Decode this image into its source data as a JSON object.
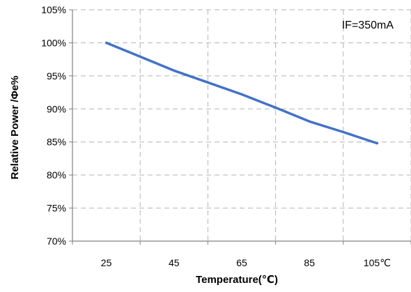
{
  "chart_data": {
    "type": "line",
    "title": "",
    "xlabel": "Temperature(℃)",
    "ylabel": "Relative Power /Φe%",
    "annotation": "IF=350mA",
    "x_ticks": [
      "25",
      "45",
      "65",
      "85",
      "105℃"
    ],
    "y_ticks": [
      "70%",
      "75%",
      "80%",
      "85%",
      "90%",
      "95%",
      "100%",
      "105%"
    ],
    "xlim": [
      15,
      115
    ],
    "ylim": [
      70,
      105
    ],
    "grid": true,
    "series": [
      {
        "color": "#4472c4",
        "points": [
          {
            "x": 25,
            "y": 100.0
          },
          {
            "x": 35,
            "y": 97.9
          },
          {
            "x": 45,
            "y": 95.8
          },
          {
            "x": 55,
            "y": 94.0
          },
          {
            "x": 65,
            "y": 92.2
          },
          {
            "x": 75,
            "y": 90.2
          },
          {
            "x": 85,
            "y": 88.1
          },
          {
            "x": 95,
            "y": 86.5
          },
          {
            "x": 105,
            "y": 84.8
          }
        ]
      }
    ]
  }
}
